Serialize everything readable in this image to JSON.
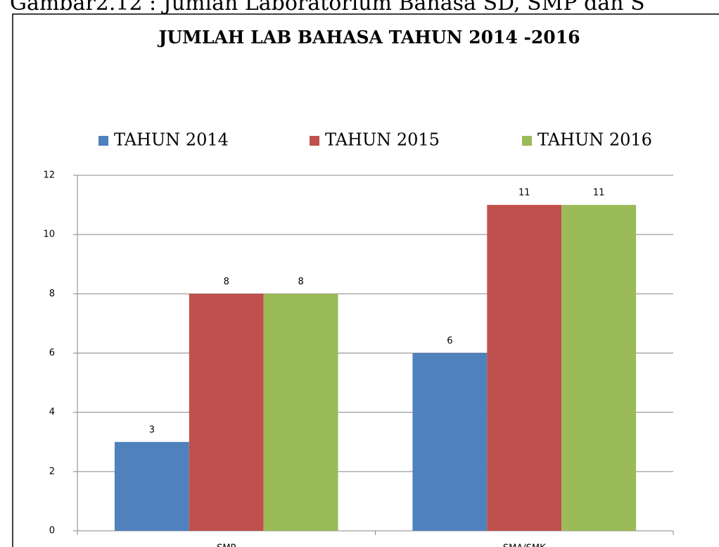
{
  "caption": "Gambar2.12 : Jumlah Laboratorium Bahasa SD, SMP dan S",
  "chart_data": {
    "type": "bar",
    "title": "JUMLAH LAB BAHASA TAHUN 2014 -2016",
    "categories": [
      "SMP",
      "SMA/SMK"
    ],
    "series": [
      {
        "name": "TAHUN 2014",
        "color": "#4f81bd",
        "values": [
          3,
          6
        ]
      },
      {
        "name": "TAHUN 2015",
        "color": "#c0504d",
        "values": [
          8,
          11
        ]
      },
      {
        "name": "TAHUN 2016",
        "color": "#9bbb59",
        "values": [
          8,
          11
        ]
      }
    ],
    "ylim": [
      0,
      12
    ],
    "yticks": [
      0,
      2,
      4,
      6,
      8,
      10,
      12
    ],
    "grid": true,
    "legend": "top"
  }
}
